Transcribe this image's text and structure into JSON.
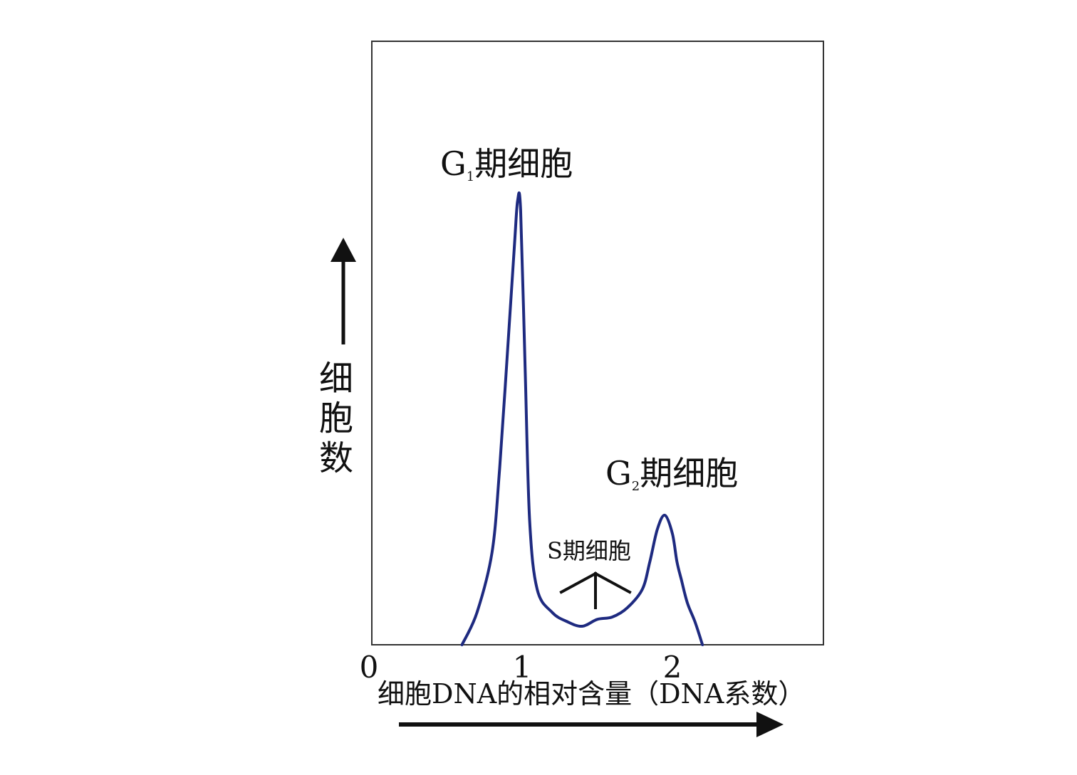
{
  "chart_data": {
    "type": "line",
    "title": "",
    "xlabel": "细胞DNA的相对含量（DNA系数）",
    "ylabel": "细胞数",
    "x_ticks": [
      "0",
      "1",
      "2"
    ],
    "xlim": [
      0,
      3
    ],
    "ylim": [
      0,
      100
    ],
    "grid": false,
    "series": [
      {
        "color": "#1e2a80",
        "x": [
          0.6,
          0.7,
          0.8,
          0.85,
          0.9,
          0.95,
          0.97,
          0.99,
          1.02,
          1.05,
          1.1,
          1.2,
          1.3,
          1.4,
          1.5,
          1.6,
          1.7,
          1.8,
          1.85,
          1.9,
          1.95,
          2.0,
          2.03,
          2.06,
          2.1,
          2.15,
          2.2
        ],
        "y": [
          0,
          7,
          20,
          38,
          62,
          87,
          96,
          94,
          60,
          27,
          12,
          7,
          5,
          4,
          5.5,
          6,
          8,
          12,
          18,
          25,
          28,
          24,
          18,
          14,
          9,
          5,
          0
        ]
      }
    ],
    "annotations": [
      {
        "id": "g1",
        "main": "G",
        "sub": "1",
        "text": "期细胞",
        "x": 1.0,
        "y": 96
      },
      {
        "id": "s",
        "main": "S",
        "sub": "",
        "text": "期细胞",
        "x": 1.5,
        "y": 5.5
      },
      {
        "id": "g2",
        "main": "G",
        "sub": "2",
        "text": "期细胞",
        "x": 2.0,
        "y": 28
      }
    ],
    "colors": {
      "curve": "#1e2a80",
      "axis": "#111111"
    }
  }
}
